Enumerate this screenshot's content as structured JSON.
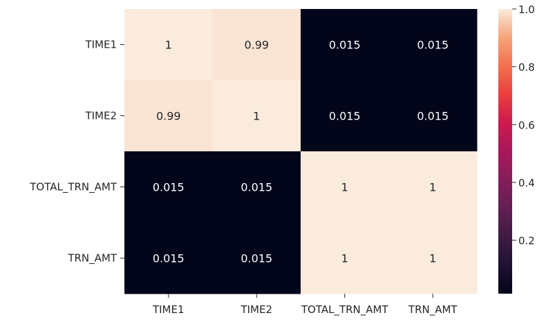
{
  "chart_data": {
    "type": "heatmap",
    "title": "",
    "xlabel": "",
    "ylabel": "",
    "x_categories": [
      "TIME1",
      "TIME2",
      "TOTAL_TRN_AMT",
      "TRN_AMT"
    ],
    "y_categories": [
      "TIME1",
      "TIME2",
      "TOTAL_TRN_AMT",
      "TRN_AMT"
    ],
    "values": [
      [
        1,
        0.99,
        0.015,
        0.015
      ],
      [
        0.99,
        1,
        0.015,
        0.015
      ],
      [
        0.015,
        0.015,
        1,
        1
      ],
      [
        0.015,
        0.015,
        1,
        1
      ]
    ],
    "annotations": [
      [
        "1",
        "0.99",
        "0.015",
        "0.015"
      ],
      [
        "0.99",
        "1",
        "0.015",
        "0.015"
      ],
      [
        "0.015",
        "0.015",
        "1",
        "1"
      ],
      [
        "0.015",
        "0.015",
        "1",
        "1"
      ]
    ],
    "colormap": "rocket",
    "colorbar": {
      "vmin": 0.015,
      "vmax": 1.0,
      "ticks": [
        0.2,
        0.4,
        0.6,
        0.8,
        1.0
      ],
      "tick_labels": [
        "0.2",
        "0.4",
        "0.6",
        "0.8",
        "1.0"
      ],
      "placement": "right"
    }
  }
}
